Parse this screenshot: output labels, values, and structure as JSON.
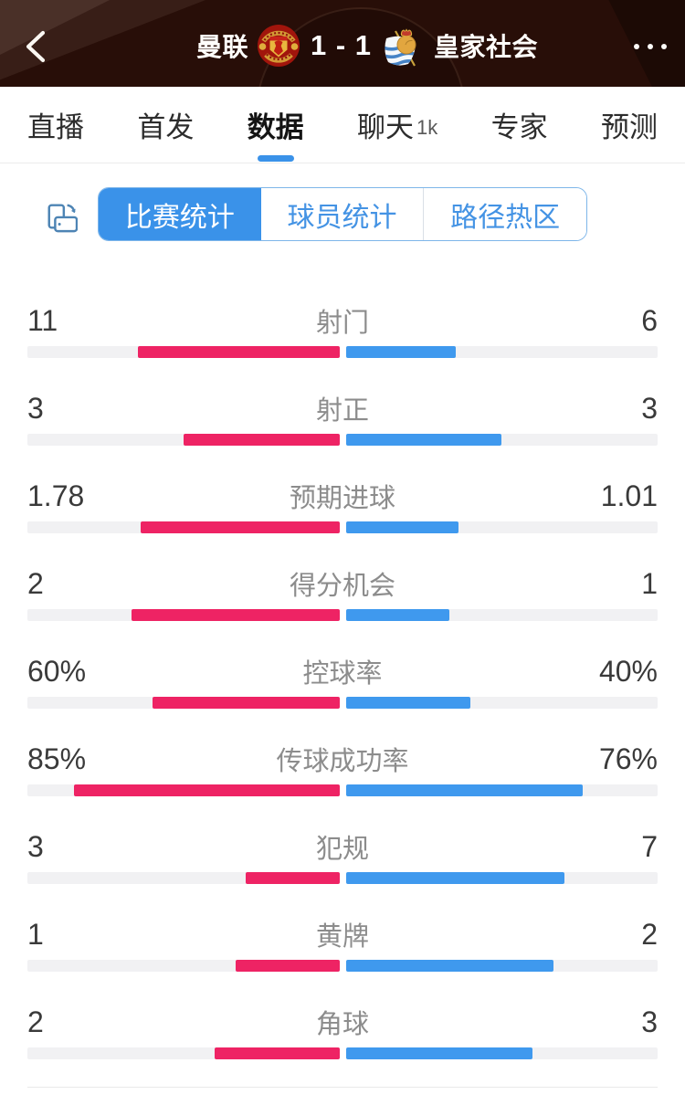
{
  "header": {
    "home_team": "曼联",
    "score": "1 - 1",
    "away_team": "皇家社会",
    "icons": {
      "back": "chevron-left",
      "more": "ellipsis",
      "home_crest": "manchester-united-crest",
      "away_crest": "real-sociedad-crest"
    }
  },
  "tabs": {
    "items": [
      {
        "label": "直播",
        "active": false
      },
      {
        "label": "首发",
        "active": false
      },
      {
        "label": "数据",
        "active": true
      },
      {
        "label": "聊天",
        "active": false,
        "badge": "1k"
      },
      {
        "label": "专家",
        "active": false
      },
      {
        "label": "预测",
        "active": false
      }
    ]
  },
  "filters": {
    "view_icon": "rotate-screen",
    "options": [
      {
        "label": "比赛统计",
        "selected": true
      },
      {
        "label": "球员统计",
        "selected": false
      },
      {
        "label": "路径热区",
        "selected": false
      }
    ]
  },
  "chart_data": {
    "type": "bar",
    "title": "比赛统计",
    "legend": [
      "曼联",
      "皇家社会"
    ],
    "rows": [
      {
        "label": "射门",
        "home": "11",
        "away": "6"
      },
      {
        "label": "射正",
        "home": "3",
        "away": "3"
      },
      {
        "label": "预期进球",
        "home": "1.78",
        "away": "1.01"
      },
      {
        "label": "得分机会",
        "home": "2",
        "away": "1"
      },
      {
        "label": "控球率",
        "home": "60%",
        "away": "40%"
      },
      {
        "label": "传球成功率",
        "home": "85%",
        "away": "76%"
      },
      {
        "label": "犯规",
        "home": "3",
        "away": "7"
      },
      {
        "label": "黄牌",
        "home": "1",
        "away": "2"
      },
      {
        "label": "角球",
        "home": "2",
        "away": "3"
      }
    ]
  },
  "colors": {
    "home": "#EE2364",
    "away": "#3F99EE",
    "accent": "#3A92E9"
  }
}
